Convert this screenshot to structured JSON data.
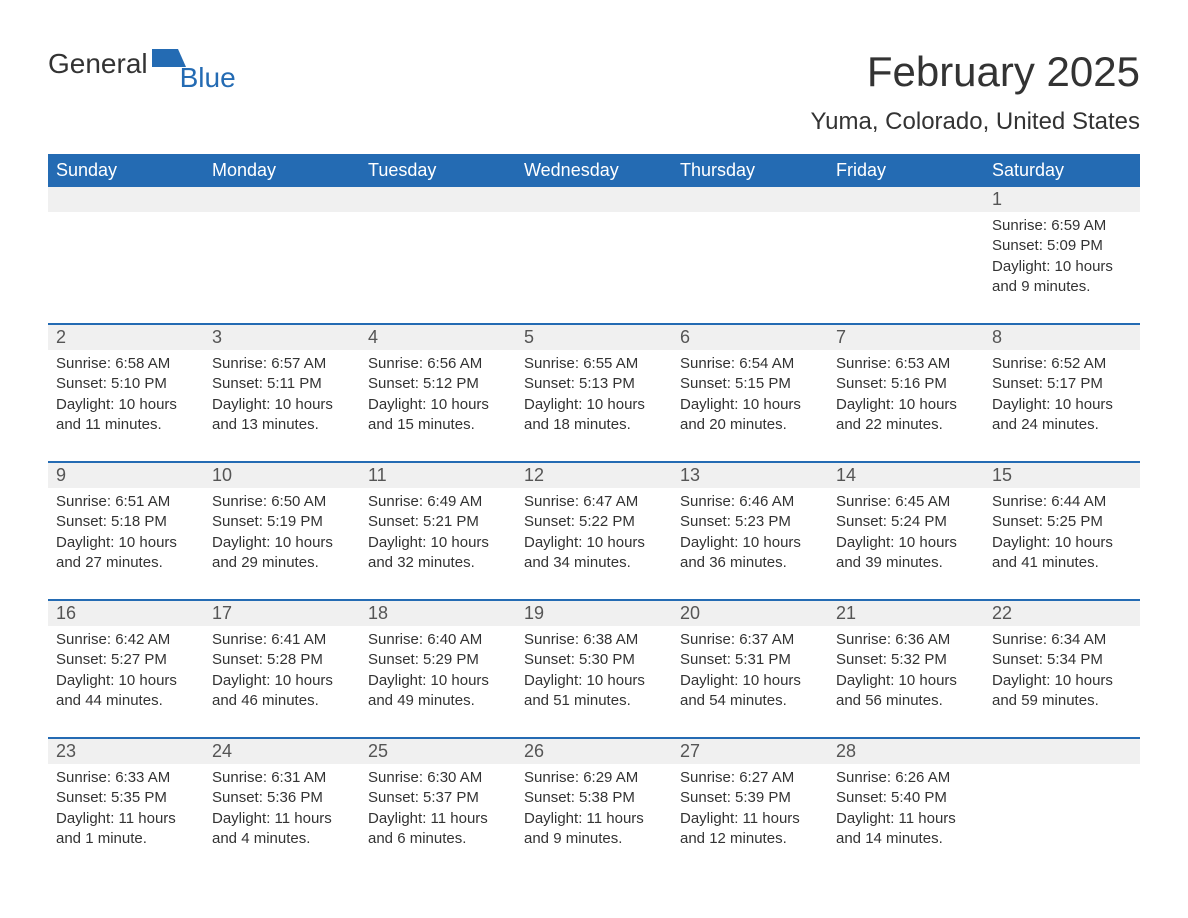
{
  "logo": {
    "text1": "General",
    "text2": "Blue",
    "icon_color": "#246bb3"
  },
  "title": "February 2025",
  "location": "Yuma, Colorado, United States",
  "colors": {
    "header_bg": "#246bb3",
    "header_text": "#ffffff",
    "daynum_bg": "#f0f0f0",
    "text": "#333333",
    "logo_blue": "#246bb3",
    "page_bg": "#ffffff"
  },
  "fonts": {
    "title_size": 42,
    "location_size": 24,
    "dayhead_size": 18,
    "body_size": 15
  },
  "day_headers": [
    "Sunday",
    "Monday",
    "Tuesday",
    "Wednesday",
    "Thursday",
    "Friday",
    "Saturday"
  ],
  "labels": {
    "sunrise": "Sunrise:",
    "sunset": "Sunset:",
    "daylight": "Daylight:"
  },
  "weeks": [
    [
      null,
      null,
      null,
      null,
      null,
      null,
      {
        "n": "1",
        "sunrise": "6:59 AM",
        "sunset": "5:09 PM",
        "daylight": "10 hours and 9 minutes."
      }
    ],
    [
      {
        "n": "2",
        "sunrise": "6:58 AM",
        "sunset": "5:10 PM",
        "daylight": "10 hours and 11 minutes."
      },
      {
        "n": "3",
        "sunrise": "6:57 AM",
        "sunset": "5:11 PM",
        "daylight": "10 hours and 13 minutes."
      },
      {
        "n": "4",
        "sunrise": "6:56 AM",
        "sunset": "5:12 PM",
        "daylight": "10 hours and 15 minutes."
      },
      {
        "n": "5",
        "sunrise": "6:55 AM",
        "sunset": "5:13 PM",
        "daylight": "10 hours and 18 minutes."
      },
      {
        "n": "6",
        "sunrise": "6:54 AM",
        "sunset": "5:15 PM",
        "daylight": "10 hours and 20 minutes."
      },
      {
        "n": "7",
        "sunrise": "6:53 AM",
        "sunset": "5:16 PM",
        "daylight": "10 hours and 22 minutes."
      },
      {
        "n": "8",
        "sunrise": "6:52 AM",
        "sunset": "5:17 PM",
        "daylight": "10 hours and 24 minutes."
      }
    ],
    [
      {
        "n": "9",
        "sunrise": "6:51 AM",
        "sunset": "5:18 PM",
        "daylight": "10 hours and 27 minutes."
      },
      {
        "n": "10",
        "sunrise": "6:50 AM",
        "sunset": "5:19 PM",
        "daylight": "10 hours and 29 minutes."
      },
      {
        "n": "11",
        "sunrise": "6:49 AM",
        "sunset": "5:21 PM",
        "daylight": "10 hours and 32 minutes."
      },
      {
        "n": "12",
        "sunrise": "6:47 AM",
        "sunset": "5:22 PM",
        "daylight": "10 hours and 34 minutes."
      },
      {
        "n": "13",
        "sunrise": "6:46 AM",
        "sunset": "5:23 PM",
        "daylight": "10 hours and 36 minutes."
      },
      {
        "n": "14",
        "sunrise": "6:45 AM",
        "sunset": "5:24 PM",
        "daylight": "10 hours and 39 minutes."
      },
      {
        "n": "15",
        "sunrise": "6:44 AM",
        "sunset": "5:25 PM",
        "daylight": "10 hours and 41 minutes."
      }
    ],
    [
      {
        "n": "16",
        "sunrise": "6:42 AM",
        "sunset": "5:27 PM",
        "daylight": "10 hours and 44 minutes."
      },
      {
        "n": "17",
        "sunrise": "6:41 AM",
        "sunset": "5:28 PM",
        "daylight": "10 hours and 46 minutes."
      },
      {
        "n": "18",
        "sunrise": "6:40 AM",
        "sunset": "5:29 PM",
        "daylight": "10 hours and 49 minutes."
      },
      {
        "n": "19",
        "sunrise": "6:38 AM",
        "sunset": "5:30 PM",
        "daylight": "10 hours and 51 minutes."
      },
      {
        "n": "20",
        "sunrise": "6:37 AM",
        "sunset": "5:31 PM",
        "daylight": "10 hours and 54 minutes."
      },
      {
        "n": "21",
        "sunrise": "6:36 AM",
        "sunset": "5:32 PM",
        "daylight": "10 hours and 56 minutes."
      },
      {
        "n": "22",
        "sunrise": "6:34 AM",
        "sunset": "5:34 PM",
        "daylight": "10 hours and 59 minutes."
      }
    ],
    [
      {
        "n": "23",
        "sunrise": "6:33 AM",
        "sunset": "5:35 PM",
        "daylight": "11 hours and 1 minute."
      },
      {
        "n": "24",
        "sunrise": "6:31 AM",
        "sunset": "5:36 PM",
        "daylight": "11 hours and 4 minutes."
      },
      {
        "n": "25",
        "sunrise": "6:30 AM",
        "sunset": "5:37 PM",
        "daylight": "11 hours and 6 minutes."
      },
      {
        "n": "26",
        "sunrise": "6:29 AM",
        "sunset": "5:38 PM",
        "daylight": "11 hours and 9 minutes."
      },
      {
        "n": "27",
        "sunrise": "6:27 AM",
        "sunset": "5:39 PM",
        "daylight": "11 hours and 12 minutes."
      },
      {
        "n": "28",
        "sunrise": "6:26 AM",
        "sunset": "5:40 PM",
        "daylight": "11 hours and 14 minutes."
      },
      null
    ]
  ]
}
